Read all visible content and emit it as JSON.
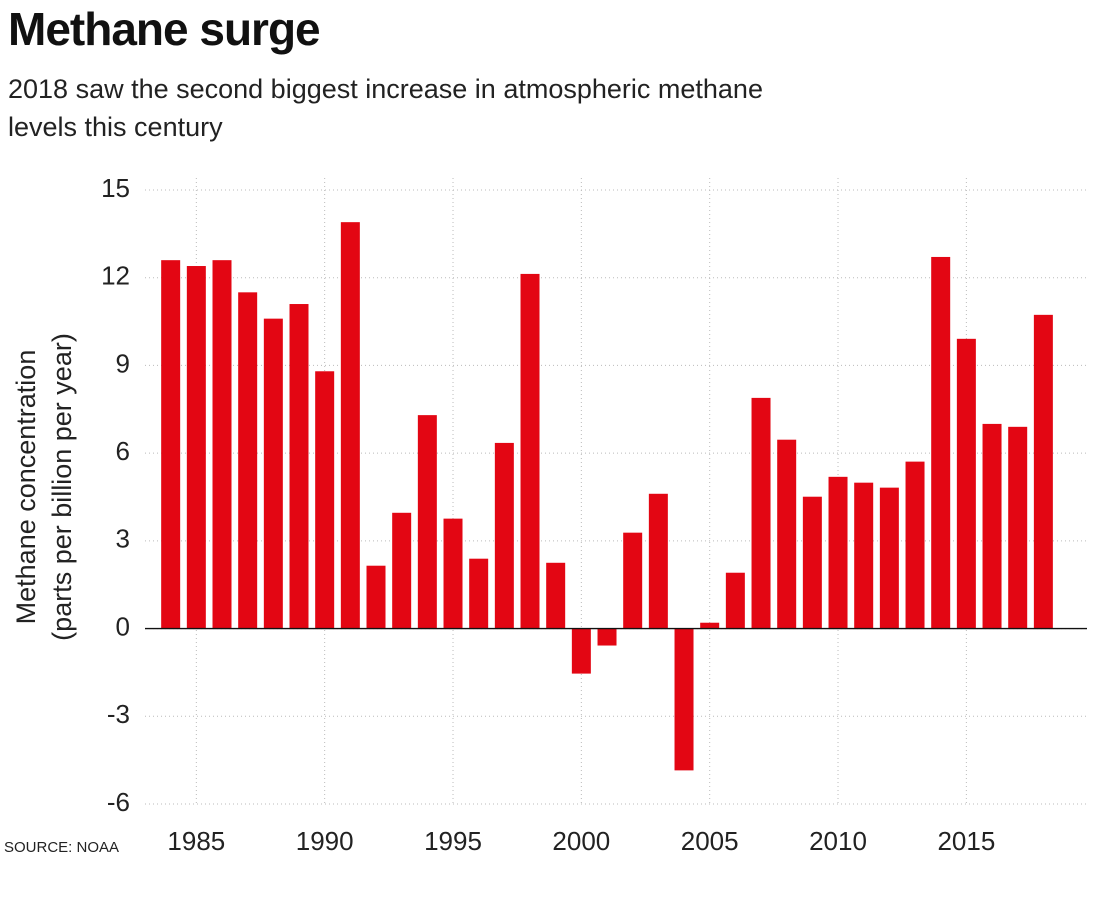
{
  "chart_data": {
    "type": "bar",
    "title": "Methane surge",
    "subtitle": "2018 saw the second biggest increase in atmospheric methane levels this century",
    "ylabel": [
      "Methane concentration",
      "(parts per billion per year)"
    ],
    "source": "SOURCE: NOAA",
    "x": [
      1984,
      1985,
      1986,
      1987,
      1988,
      1989,
      1990,
      1991,
      1992,
      1993,
      1994,
      1995,
      1996,
      1997,
      1998,
      1999,
      2000,
      2001,
      2002,
      2003,
      2004,
      2005,
      2006,
      2007,
      2008,
      2009,
      2010,
      2011,
      2012,
      2013,
      2014,
      2015,
      2016,
      2017,
      2018
    ],
    "values": [
      12.6,
      12.4,
      12.6,
      11.5,
      10.6,
      11.1,
      8.8,
      13.9,
      2.15,
      3.96,
      7.3,
      3.76,
      2.39,
      6.35,
      12.13,
      2.25,
      -1.54,
      -0.58,
      3.28,
      4.61,
      -4.85,
      0.2,
      1.91,
      7.89,
      6.46,
      4.51,
      5.19,
      4.99,
      4.82,
      5.71,
      12.71,
      9.91,
      7.0,
      6.9,
      10.73
    ],
    "color": "#e30613",
    "xlim": [
      1983,
      2019.7
    ],
    "xticks": [
      1985,
      1990,
      1995,
      2000,
      2005,
      2010,
      2015
    ],
    "ylim": [
      -6,
      15
    ],
    "yticks": [
      -6,
      -3,
      0,
      3,
      6,
      9,
      12,
      15
    ],
    "grid": true
  }
}
